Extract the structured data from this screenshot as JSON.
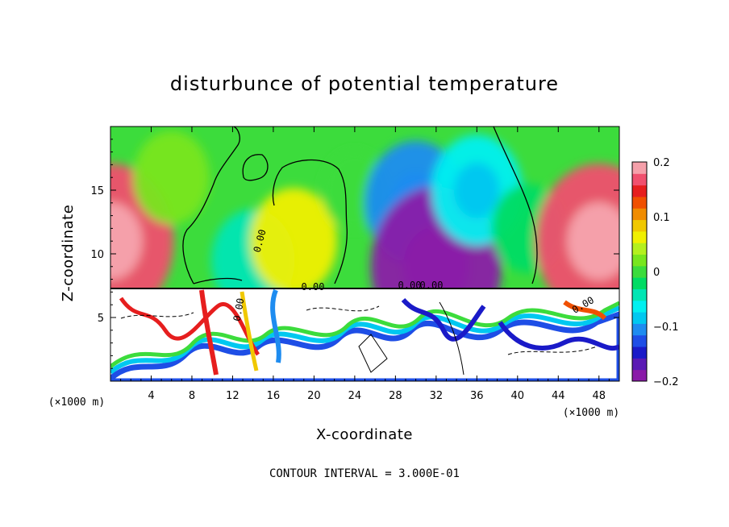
{
  "chart_data": {
    "type": "heatmap",
    "title": "disturbunce of potential temperature",
    "xlabel": "X-coordinate",
    "ylabel": "Z-coordinate",
    "x_unit": "(×1000 m)",
    "y_unit": "(×1000 m)",
    "xlim": [
      0,
      50
    ],
    "ylim": [
      0,
      20
    ],
    "x_ticks": [
      4,
      8,
      12,
      16,
      20,
      24,
      28,
      32,
      36,
      40,
      44,
      48
    ],
    "y_ticks": [
      5,
      10,
      15
    ],
    "colorbar": {
      "range": [
        -0.2,
        0.2
      ],
      "tick_values": [
        0.2,
        0.1,
        0,
        -0.1,
        -0.2
      ],
      "tick_labels": [
        "0.2",
        "0.1",
        "0",
        "−0.1",
        "−0.2"
      ],
      "colors": [
        "#8a1aa8",
        "#5a1ab4",
        "#1a1ac8",
        "#1e4ee6",
        "#1e8cf0",
        "#00c8f0",
        "#00f0f0",
        "#00e6b4",
        "#00dc64",
        "#3cdc3c",
        "#78e61e",
        "#b4f01e",
        "#f0f000",
        "#f0c800",
        "#f08c00",
        "#f05000",
        "#e61e1e",
        "#f0506e",
        "#f5a0aa"
      ]
    },
    "contour_labels": [
      "0.00",
      "0.00",
      "0.00",
      "0.00",
      "0.00",
      "0.00"
    ],
    "contour_interval_text": "CONTOUR INTERVAL = 3.000E-01",
    "upper_layer_anomalies": [
      {
        "x": 0,
        "z": 11,
        "value": 0.17
      },
      {
        "x": 6,
        "z": 16,
        "value": 0.03
      },
      {
        "x": 14,
        "z": 9.5,
        "value": -0.05
      },
      {
        "x": 18,
        "z": 11,
        "value": 0.06
      },
      {
        "x": 24,
        "z": 15,
        "value": 0.0
      },
      {
        "x": 30,
        "z": 14,
        "value": -0.1
      },
      {
        "x": 32,
        "z": 9,
        "value": -0.18
      },
      {
        "x": 36,
        "z": 15,
        "value": -0.07
      },
      {
        "x": 41,
        "z": 12,
        "value": -0.02
      },
      {
        "x": 48,
        "z": 11,
        "value": 0.17
      }
    ]
  }
}
